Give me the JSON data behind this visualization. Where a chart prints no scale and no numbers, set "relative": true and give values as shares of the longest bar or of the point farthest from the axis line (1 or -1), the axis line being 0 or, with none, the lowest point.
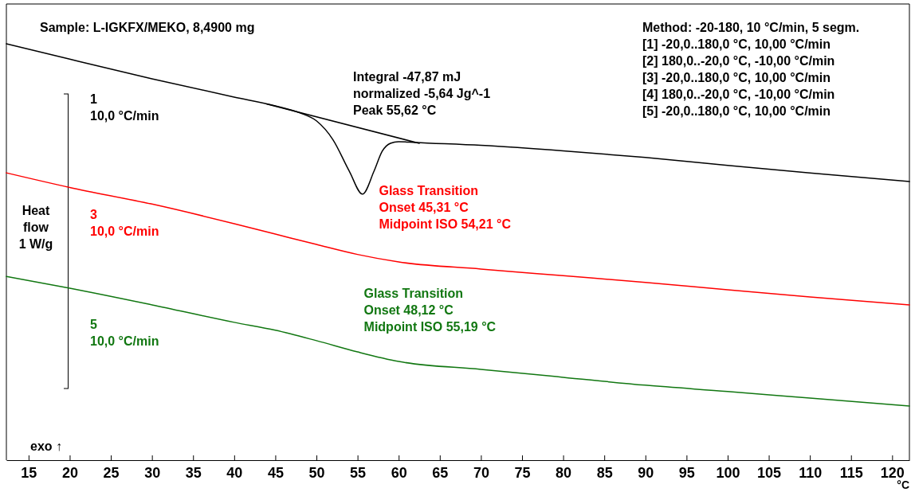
{
  "chart_data": {
    "type": "line",
    "relative": true,
    "title": "Sample: L-IGKFX/MEKO, 8,4900 mg",
    "ylabel": "Heat\nflow\n1 W/g",
    "xlabel": "°C",
    "xlim": [
      12.3,
      122.1
    ],
    "xticks": [
      15,
      20,
      25,
      30,
      35,
      40,
      45,
      50,
      55,
      60,
      65,
      70,
      75,
      80,
      85,
      90,
      95,
      100,
      105,
      110,
      115,
      120
    ],
    "marker": "none",
    "line_style": "solid",
    "series": [
      {
        "name": "1\n10,0 °C/min",
        "color": "#000000",
        "x": [
          12.3,
          20,
          30,
          40,
          45,
          48,
          50,
          52,
          54,
          55.6,
          57,
          58,
          59,
          60,
          62,
          70,
          80,
          90,
          100,
          110,
          122.1
        ],
        "values": [
          1.0,
          0.963,
          0.916,
          0.872,
          0.851,
          0.834,
          0.815,
          0.77,
          0.694,
          0.639,
          0.694,
          0.742,
          0.761,
          0.765,
          0.763,
          0.756,
          0.743,
          0.727,
          0.708,
          0.69,
          0.669
        ]
      },
      {
        "color": "#000000",
        "x": [
          44,
          62.5
        ],
        "values": [
          0.855,
          0.761
        ]
      },
      {
        "name": "3\n10,0 °C/min",
        "color": "#ff0000",
        "x": [
          12.3,
          20,
          30,
          40,
          45,
          50,
          55,
          60,
          70,
          80,
          90,
          100,
          110,
          122.1
        ],
        "values": [
          0.69,
          0.655,
          0.615,
          0.568,
          0.543,
          0.518,
          0.494,
          0.476,
          0.459,
          0.443,
          0.427,
          0.409,
          0.392,
          0.373
        ]
      },
      {
        "name": "5\n10,0 °C/min",
        "color": "#117711",
        "x": [
          12.3,
          20,
          30,
          40,
          45,
          50,
          55,
          60,
          70,
          80,
          90,
          100,
          110,
          122.1
        ],
        "values": [
          0.441,
          0.413,
          0.373,
          0.331,
          0.312,
          0.287,
          0.26,
          0.237,
          0.218,
          0.199,
          0.18,
          0.165,
          0.149,
          0.13
        ]
      }
    ],
    "annotations": [
      "Integral -47,87 mJ\nnormalized -5,64 Jg^-1\nPeak 55,62 °C",
      {
        "text": "Glass Transition\nOnset 45,31 °C\nMidpoint ISO 54,21 °C",
        "x": 54.21,
        "y": 0.494
      },
      {
        "text": "Glass Transition\nOnset 48,12 °C\nMidpoint ISO 55,19 °C",
        "x": 55.19,
        "y": 0.26
      },
      "Method: -20-180, 10 °C/min, 5 segm.\n[1] -20,0..180,0 °C, 10,00 °C/min\n[2] 180,0..-20,0 °C, -10,00 °C/min\n[3] -20,0..180,0 °C, 10,00 °C/min\n[4] 180,0..-20,0 °C, -10,00 °C/min\n[5] -20,0..180,0 °C, 10,00 °C/min",
      "exo ↑"
    ]
  }
}
